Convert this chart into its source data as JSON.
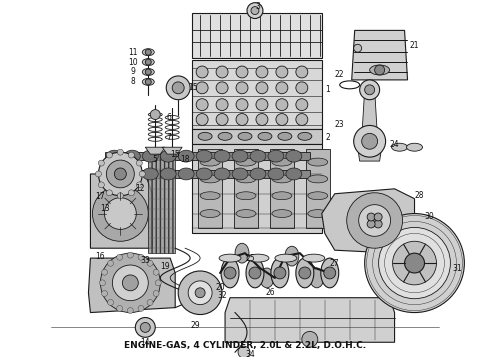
{
  "caption": "ENGINE-GAS, 4 CYLINDER, 2.0L & 2.2L, D.O.H.C.",
  "caption_fontsize": 6.5,
  "bg_color": "#ffffff",
  "lc": "#1a1a1a",
  "fc_light": "#e8e8e8",
  "fc_mid": "#d0d0d0",
  "fc_dark": "#b0b0b0",
  "fig_width": 4.9,
  "fig_height": 3.6,
  "dpi": 100
}
